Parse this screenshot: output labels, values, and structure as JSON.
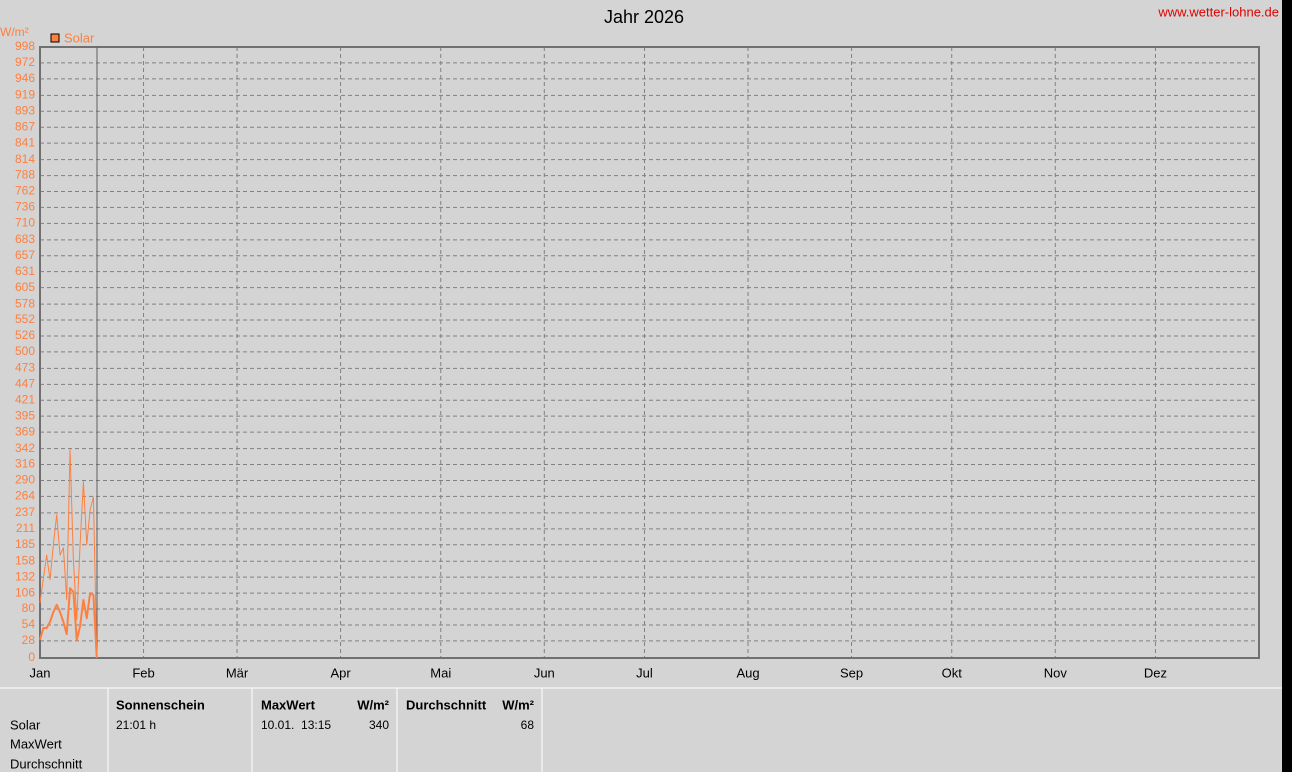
{
  "chart_data": {
    "type": "line",
    "title": "Jahr 2026",
    "source": "www.wetter-lohne.de",
    "y_unit": "W/m²",
    "xlim": [
      0,
      365
    ],
    "xticks": [
      {
        "value": 0,
        "label": "Jan"
      },
      {
        "value": 31,
        "label": "Feb"
      },
      {
        "value": 59,
        "label": "Mär"
      },
      {
        "value": 90,
        "label": "Apr"
      },
      {
        "value": 120,
        "label": "Mai"
      },
      {
        "value": 151,
        "label": "Jun"
      },
      {
        "value": 181,
        "label": "Jul"
      },
      {
        "value": 212,
        "label": "Aug"
      },
      {
        "value": 243,
        "label": "Sep"
      },
      {
        "value": 273,
        "label": "Okt"
      },
      {
        "value": 304,
        "label": "Nov"
      },
      {
        "value": 334,
        "label": "Dez"
      }
    ],
    "ylim": [
      0,
      998
    ],
    "yticks": [
      0,
      28,
      54,
      80,
      106,
      132,
      158,
      185,
      211,
      237,
      264,
      290,
      316,
      342,
      369,
      395,
      421,
      447,
      473,
      500,
      526,
      552,
      578,
      605,
      631,
      657,
      683,
      710,
      736,
      762,
      788,
      814,
      841,
      867,
      893,
      919,
      946,
      972,
      998
    ],
    "grid": true,
    "series": [
      {
        "name": "Solar",
        "color": "#ff7f3f",
        "values": [
          90,
          130,
          168,
          128,
          185,
          234,
          168,
          180,
          95,
          340,
          160,
          62,
          185,
          288,
          185,
          242,
          263,
          0
        ]
      },
      {
        "color": "#ff7f3f",
        "values": [
          30,
          49,
          49,
          59,
          75,
          87,
          75,
          59,
          39,
          114,
          108,
          29,
          52,
          95,
          65,
          106,
          103,
          0
        ]
      }
    ]
  },
  "table": {
    "header": [
      "Sonnenschein",
      "MaxWert",
      "W/m²",
      "Durchschnitt",
      "W/m²"
    ],
    "row_labels": [
      "Solar",
      "MaxWert",
      "Durchschnitt"
    ],
    "rows": [
      [
        "21:01 h",
        "10.01.  13:15",
        "340",
        "68"
      ]
    ]
  }
}
